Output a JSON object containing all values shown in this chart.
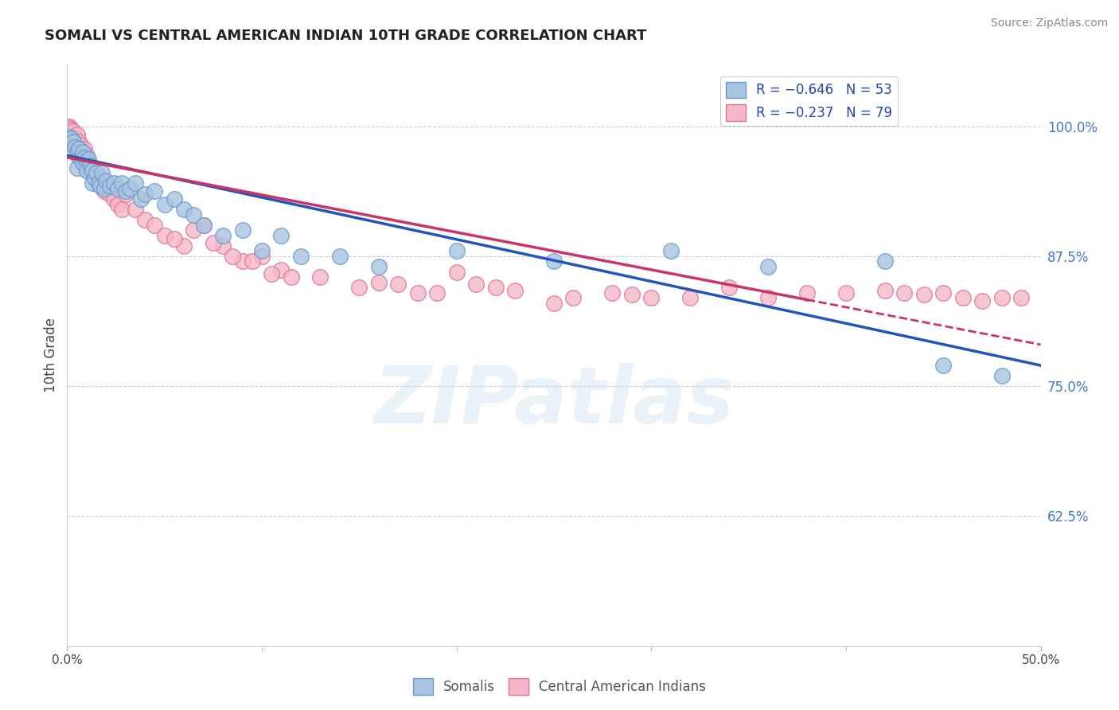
{
  "title": "SOMALI VS CENTRAL AMERICAN INDIAN 10TH GRADE CORRELATION CHART",
  "source": "Source: ZipAtlas.com",
  "ylabel": "10th Grade",
  "yaxis_labels": [
    "100.0%",
    "87.5%",
    "75.0%",
    "62.5%"
  ],
  "yaxis_values": [
    1.0,
    0.875,
    0.75,
    0.625
  ],
  "xlim": [
    0.0,
    0.5
  ],
  "ylim": [
    0.5,
    1.06
  ],
  "legend_blue_label": "R = −0.646   N = 53",
  "legend_pink_label": "R = −0.237   N = 79",
  "watermark": "ZIPatlas",
  "somali_color": "#a8c4e0",
  "somali_edge": "#6699cc",
  "central_color": "#f4b8c8",
  "central_edge": "#e07090",
  "blue_line_color": "#2255bb",
  "pink_line_color": "#cc3366",
  "somali_points_x": [
    0.001,
    0.002,
    0.003,
    0.004,
    0.005,
    0.005,
    0.006,
    0.007,
    0.008,
    0.008,
    0.009,
    0.01,
    0.01,
    0.011,
    0.012,
    0.013,
    0.013,
    0.014,
    0.015,
    0.016,
    0.017,
    0.018,
    0.019,
    0.02,
    0.022,
    0.024,
    0.026,
    0.028,
    0.03,
    0.032,
    0.035,
    0.038,
    0.04,
    0.045,
    0.05,
    0.055,
    0.06,
    0.065,
    0.07,
    0.08,
    0.09,
    0.1,
    0.11,
    0.12,
    0.14,
    0.16,
    0.2,
    0.25,
    0.31,
    0.36,
    0.42,
    0.45,
    0.48
  ],
  "somali_points_y": [
    0.99,
    0.988,
    0.985,
    0.98,
    0.975,
    0.96,
    0.978,
    0.97,
    0.975,
    0.965,
    0.97,
    0.965,
    0.958,
    0.968,
    0.962,
    0.958,
    0.945,
    0.95,
    0.955,
    0.945,
    0.942,
    0.955,
    0.94,
    0.948,
    0.942,
    0.945,
    0.94,
    0.945,
    0.938,
    0.94,
    0.945,
    0.93,
    0.935,
    0.938,
    0.925,
    0.93,
    0.92,
    0.915,
    0.905,
    0.895,
    0.9,
    0.88,
    0.895,
    0.875,
    0.875,
    0.865,
    0.88,
    0.87,
    0.88,
    0.865,
    0.87,
    0.77,
    0.76
  ],
  "central_points_x": [
    0.001,
    0.001,
    0.002,
    0.002,
    0.003,
    0.004,
    0.004,
    0.005,
    0.005,
    0.006,
    0.006,
    0.007,
    0.007,
    0.008,
    0.008,
    0.009,
    0.009,
    0.01,
    0.01,
    0.011,
    0.012,
    0.013,
    0.014,
    0.015,
    0.016,
    0.017,
    0.018,
    0.019,
    0.02,
    0.022,
    0.024,
    0.026,
    0.028,
    0.03,
    0.035,
    0.04,
    0.045,
    0.05,
    0.06,
    0.07,
    0.08,
    0.09,
    0.1,
    0.11,
    0.13,
    0.15,
    0.16,
    0.18,
    0.2,
    0.22,
    0.25,
    0.28,
    0.3,
    0.32,
    0.34,
    0.36,
    0.38,
    0.4,
    0.42,
    0.43,
    0.44,
    0.45,
    0.46,
    0.47,
    0.48,
    0.49,
    0.055,
    0.065,
    0.075,
    0.085,
    0.095,
    0.105,
    0.115,
    0.17,
    0.19,
    0.21,
    0.23,
    0.26,
    0.29
  ],
  "central_points_y": [
    1.0,
    0.998,
    0.997,
    0.99,
    0.995,
    0.988,
    0.98,
    0.992,
    0.978,
    0.985,
    0.97,
    0.982,
    0.972,
    0.975,
    0.968,
    0.978,
    0.962,
    0.972,
    0.958,
    0.965,
    0.96,
    0.958,
    0.952,
    0.955,
    0.948,
    0.95,
    0.942,
    0.938,
    0.945,
    0.935,
    0.93,
    0.925,
    0.92,
    0.935,
    0.92,
    0.91,
    0.905,
    0.895,
    0.885,
    0.905,
    0.885,
    0.87,
    0.875,
    0.862,
    0.855,
    0.845,
    0.85,
    0.84,
    0.86,
    0.845,
    0.83,
    0.84,
    0.835,
    0.835,
    0.845,
    0.835,
    0.84,
    0.84,
    0.842,
    0.84,
    0.838,
    0.84,
    0.835,
    0.832,
    0.835,
    0.835,
    0.892,
    0.9,
    0.888,
    0.875,
    0.87,
    0.858,
    0.855,
    0.848,
    0.84,
    0.848,
    0.842,
    0.835,
    0.838
  ],
  "blue_line_x": [
    0.0,
    0.5
  ],
  "blue_line_y": [
    0.972,
    0.77
  ],
  "pink_line_x": [
    0.0,
    0.5
  ],
  "pink_line_y": [
    0.97,
    0.79
  ],
  "pink_line_dash_start": 0.38,
  "xtick_vals": [
    0.0,
    0.5
  ],
  "xtick_labels": [
    "0.0%",
    "50.0%"
  ]
}
